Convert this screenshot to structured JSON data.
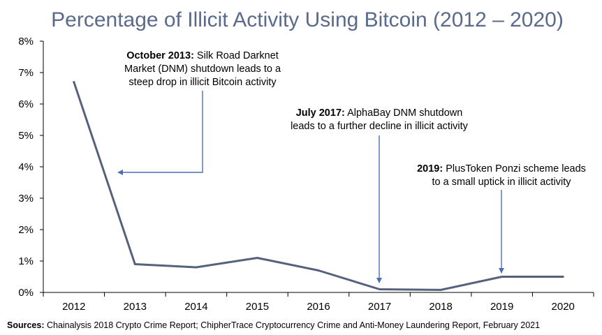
{
  "chart_data": {
    "type": "line",
    "title": "Percentage of Illicit Activity Using Bitcoin (2012 – 2020)",
    "x": [
      "2012",
      "2013",
      "2014",
      "2015",
      "2016",
      "2017",
      "2018",
      "2019",
      "2020"
    ],
    "series": [
      {
        "values": [
          6.7,
          0.9,
          0.8,
          1.1,
          0.7,
          0.1,
          0.08,
          0.5,
          0.5
        ]
      }
    ],
    "ylim": [
      0,
      8
    ],
    "yticks": [
      "0%",
      "1%",
      "2%",
      "3%",
      "4%",
      "5%",
      "6%",
      "7%",
      "8%"
    ],
    "grid": false,
    "colors": {
      "line": "#56617e",
      "arrow": "#4a6fb8"
    },
    "annotations": [
      {
        "bold": "October 2013:",
        "lines": [
          " Silk Road Darknet",
          "Market (DNM) shutdown leads to a",
          "steep drop in illicit Bitcoin activity"
        ]
      },
      {
        "bold": "July 2017:",
        "lines": [
          " AlphaBay DNM shutdown",
          "leads to a further decline in illicit activity"
        ]
      },
      {
        "bold": "2019:",
        "lines": [
          " PlusToken Ponzi scheme leads",
          "to a small uptick in illicit activity"
        ]
      }
    ],
    "source_label": "Sources:",
    "source_text": " Chainalysis 2018 Crypto Crime Report; ChipherTrace Cryptocurrency Crime and Anti-Money Laundering Report, February 2021"
  }
}
